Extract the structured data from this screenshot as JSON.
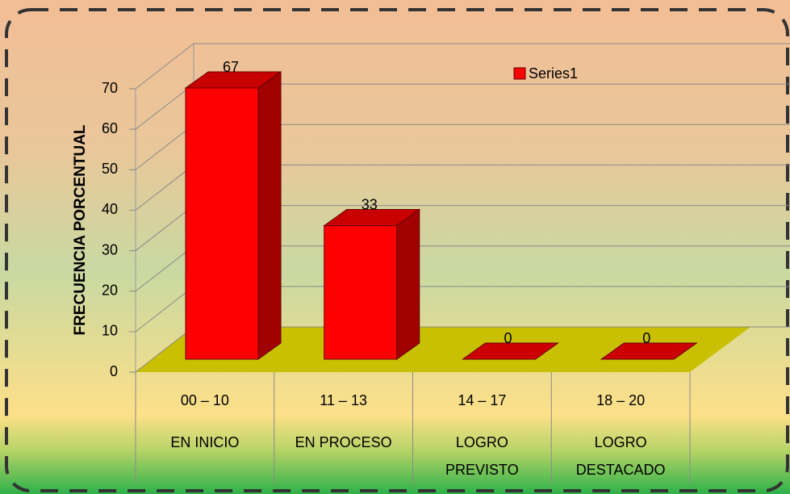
{
  "chart_data": {
    "type": "bar",
    "categories": [
      "00 – 10",
      "11 – 13",
      "14 – 17",
      "18 – 20"
    ],
    "category_groups": [
      [
        "EN INICIO"
      ],
      [
        "EN PROCESO"
      ],
      [
        "LOGRO",
        "PREVISTO"
      ],
      [
        "LOGRO",
        "DESTACADO"
      ]
    ],
    "series": [
      {
        "name": "Series1",
        "color": "#ff0000",
        "values": [
          67,
          33,
          0,
          0
        ]
      }
    ],
    "y_label": "FRECUENCIA PORCENTUAL",
    "ylim": [
      0,
      70
    ],
    "yticks": [
      0,
      10,
      20,
      30,
      40,
      50,
      60,
      70
    ],
    "grid": true,
    "legend": "top-right"
  }
}
